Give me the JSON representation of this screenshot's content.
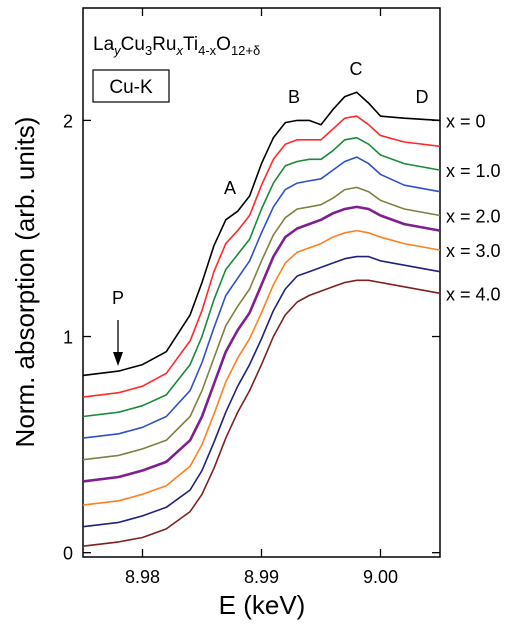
{
  "chart_data": {
    "type": "line",
    "title_parts": [
      "La",
      "y",
      "Cu",
      "3",
      "Ru",
      "x",
      "Ti",
      "4-x",
      "O",
      "12+δ"
    ],
    "edge_label": "Cu-K",
    "x_label": "E (keV)",
    "y_label": "Norm. absorption (arb. units)",
    "annotations": [
      "A",
      "B",
      "C",
      "D",
      "P"
    ],
    "xlim": [
      8.975,
      9.005
    ],
    "ylim": [
      -0.02,
      2.52
    ],
    "xticks": [
      8.98,
      8.99,
      {
        "value": 9.0,
        "label": "9.00"
      }
    ],
    "yticks": [
      0,
      1,
      2
    ],
    "x": [
      8.975,
      8.978,
      8.98,
      8.982,
      8.984,
      8.985,
      8.986,
      8.987,
      8.988,
      8.989,
      8.99,
      8.991,
      8.992,
      8.993,
      8.994,
      8.995,
      8.996,
      8.997,
      8.998,
      8.999,
      9.0,
      9.002,
      9.005
    ],
    "series": [
      {
        "name": "x = 0",
        "color": "#000000",
        "values": [
          0.82,
          0.84,
          0.87,
          0.93,
          1.1,
          1.25,
          1.42,
          1.54,
          1.58,
          1.65,
          1.8,
          1.92,
          1.99,
          2.0,
          2.0,
          1.98,
          2.05,
          2.11,
          2.13,
          2.08,
          2.02,
          2.01,
          2.0
        ]
      },
      {
        "color": "#ff2a2a",
        "values": [
          0.72,
          0.74,
          0.77,
          0.83,
          0.98,
          1.12,
          1.3,
          1.43,
          1.49,
          1.56,
          1.7,
          1.82,
          1.89,
          1.91,
          1.91,
          1.91,
          1.96,
          2.01,
          2.02,
          1.98,
          1.93,
          1.9,
          1.88
        ]
      },
      {
        "name": "x = 1.0",
        "color": "#1a8a3a",
        "values": [
          0.63,
          0.65,
          0.68,
          0.73,
          0.87,
          1.0,
          1.17,
          1.31,
          1.38,
          1.45,
          1.59,
          1.71,
          1.79,
          1.81,
          1.82,
          1.82,
          1.86,
          1.91,
          1.92,
          1.89,
          1.84,
          1.8,
          1.77
        ]
      },
      {
        "color": "#3050c8",
        "values": [
          0.53,
          0.55,
          0.58,
          0.63,
          0.75,
          0.88,
          1.04,
          1.19,
          1.27,
          1.35,
          1.48,
          1.6,
          1.68,
          1.71,
          1.72,
          1.73,
          1.77,
          1.81,
          1.83,
          1.8,
          1.75,
          1.7,
          1.67
        ]
      },
      {
        "name": "x = 2.0",
        "color": "#808040",
        "values": [
          0.43,
          0.45,
          0.48,
          0.52,
          0.63,
          0.75,
          0.9,
          1.05,
          1.14,
          1.22,
          1.35,
          1.47,
          1.55,
          1.59,
          1.6,
          1.61,
          1.64,
          1.68,
          1.69,
          1.67,
          1.63,
          1.59,
          1.56
        ]
      },
      {
        "color": "#802090",
        "values": [
          0.33,
          0.35,
          0.38,
          0.42,
          0.52,
          0.63,
          0.78,
          0.93,
          1.03,
          1.11,
          1.24,
          1.37,
          1.46,
          1.5,
          1.52,
          1.54,
          1.57,
          1.59,
          1.6,
          1.59,
          1.56,
          1.52,
          1.49
        ]
      },
      {
        "name": "x = 3.0",
        "color": "#ff8020",
        "values": [
          0.22,
          0.24,
          0.27,
          0.31,
          0.4,
          0.5,
          0.64,
          0.79,
          0.9,
          0.99,
          1.11,
          1.24,
          1.34,
          1.39,
          1.41,
          1.43,
          1.46,
          1.48,
          1.49,
          1.48,
          1.46,
          1.43,
          1.4
        ]
      },
      {
        "color": "#202080",
        "values": [
          0.12,
          0.14,
          0.17,
          0.21,
          0.29,
          0.38,
          0.51,
          0.65,
          0.77,
          0.87,
          0.99,
          1.12,
          1.22,
          1.28,
          1.3,
          1.32,
          1.34,
          1.36,
          1.37,
          1.37,
          1.35,
          1.33,
          1.3
        ]
      },
      {
        "name": "x = 4.0",
        "color": "#802020",
        "values": [
          0.03,
          0.05,
          0.07,
          0.11,
          0.19,
          0.27,
          0.39,
          0.53,
          0.65,
          0.75,
          0.87,
          1.0,
          1.1,
          1.16,
          1.19,
          1.21,
          1.23,
          1.25,
          1.26,
          1.26,
          1.25,
          1.23,
          1.2
        ]
      }
    ]
  }
}
